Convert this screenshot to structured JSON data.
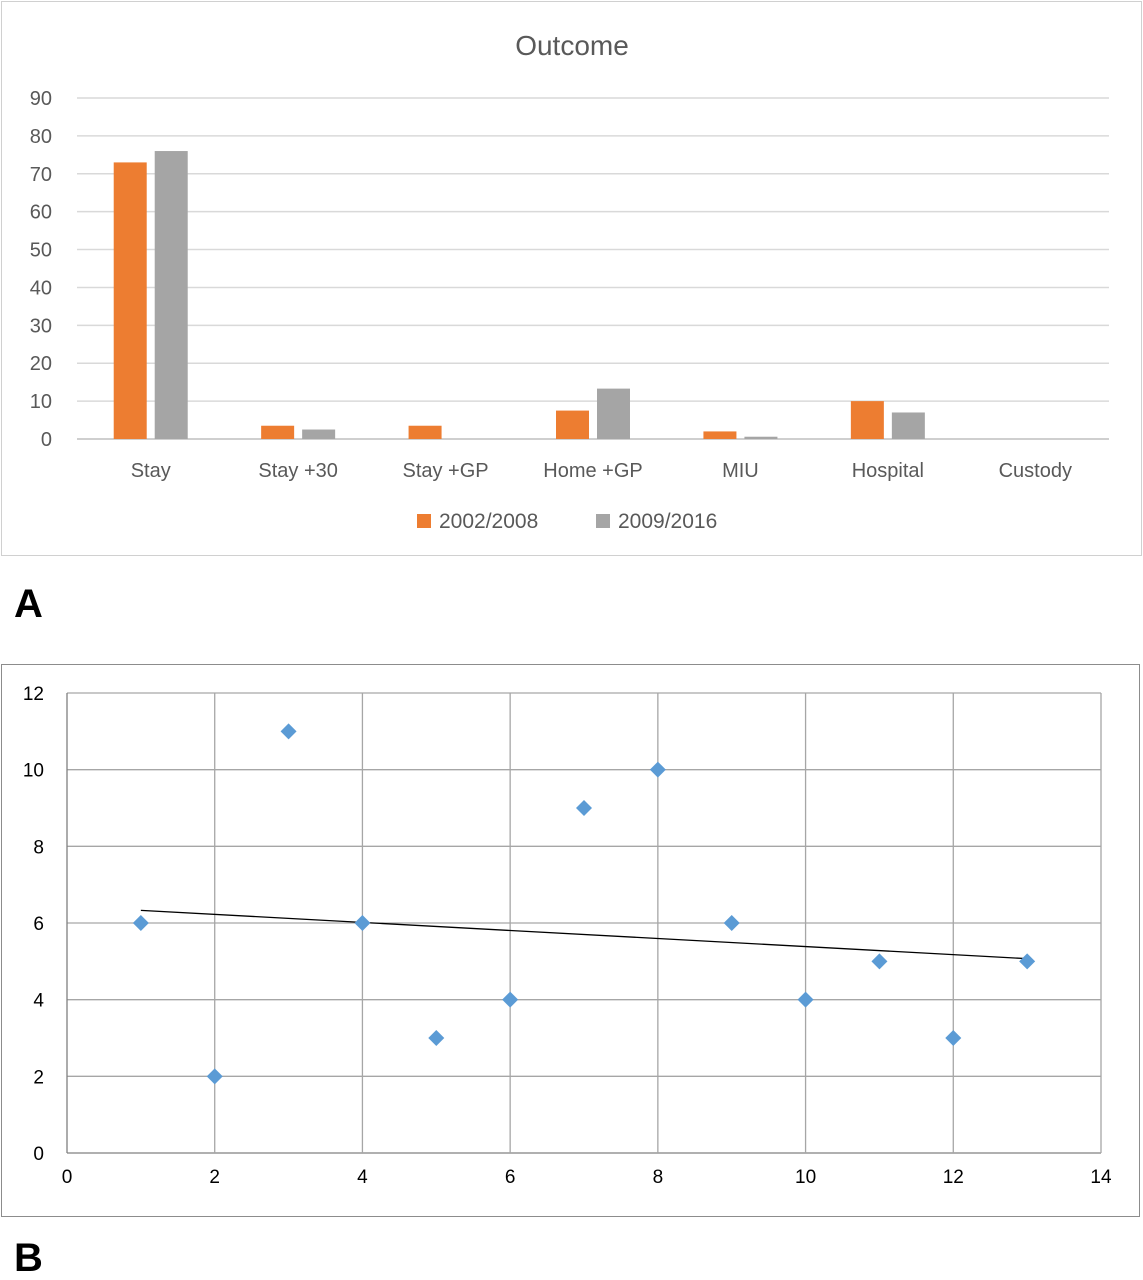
{
  "panel_labels": {
    "a": "A",
    "b": "B"
  },
  "chart_data": [
    {
      "type": "bar",
      "title": "Outcome",
      "categories": [
        "Stay",
        "Stay +30",
        "Stay +GP",
        "Home +GP",
        "MIU",
        "Hospital",
        "Custody"
      ],
      "series": [
        {
          "name": "2002/2008",
          "color": "#ED7D31",
          "values": [
            73,
            3.5,
            3.5,
            7.5,
            2,
            10,
            0
          ]
        },
        {
          "name": "2009/2016",
          "color": "#A5A5A5",
          "values": [
            76,
            2.5,
            0,
            13.3,
            0.6,
            7,
            0
          ]
        }
      ],
      "ylim": [
        0,
        90
      ],
      "yticks": [
        "0",
        "10",
        "20",
        "30",
        "40",
        "50",
        "60",
        "70",
        "80",
        "90"
      ],
      "grid": true,
      "legend": "bottom"
    },
    {
      "type": "scatter",
      "points": [
        {
          "x": 1,
          "y": 6
        },
        {
          "x": 2,
          "y": 2
        },
        {
          "x": 3,
          "y": 11
        },
        {
          "x": 4,
          "y": 6
        },
        {
          "x": 5,
          "y": 3
        },
        {
          "x": 6,
          "y": 4
        },
        {
          "x": 7,
          "y": 9
        },
        {
          "x": 8,
          "y": 10
        },
        {
          "x": 9,
          "y": 6
        },
        {
          "x": 10,
          "y": 4
        },
        {
          "x": 11,
          "y": 5
        },
        {
          "x": 12,
          "y": 3
        },
        {
          "x": 13,
          "y": 5
        }
      ],
      "marker_color": "#5B9BD5",
      "trendline": {
        "type": "linear",
        "x": [
          1,
          13
        ],
        "y": [
          6.33,
          5.07
        ],
        "color": "#000000"
      },
      "xlim": [
        0,
        14
      ],
      "ylim": [
        0,
        12
      ],
      "xticks": [
        "0",
        "2",
        "4",
        "6",
        "8",
        "10",
        "12",
        "14"
      ],
      "yticks": [
        "0",
        "2",
        "4",
        "6",
        "8",
        "10",
        "12"
      ],
      "grid": true
    }
  ]
}
